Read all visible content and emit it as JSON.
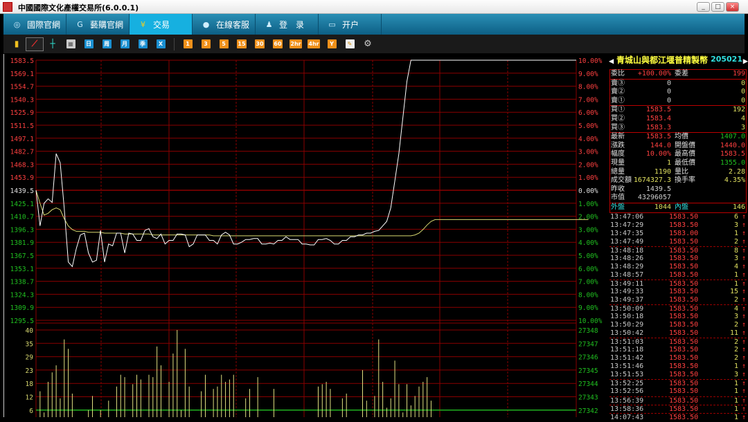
{
  "window": {
    "title": "中國國際文化產權交易所(6.0.0.1)",
    "min": "_",
    "max": "□",
    "close": "×"
  },
  "nav": [
    {
      "label": "國際官網",
      "icon": "globe-icon"
    },
    {
      "label": "藝購官網",
      "icon": "go-icon"
    },
    {
      "label": "交易",
      "icon": "yen-icon"
    },
    {
      "label": "在線客服",
      "icon": "chat-icon"
    },
    {
      "label": "登　录",
      "icon": "user-icon"
    },
    {
      "label": "开户",
      "icon": "monitor-icon"
    }
  ],
  "nav_active": 2,
  "toolbar": {
    "period_blue": [
      "日",
      "周",
      "月",
      "季",
      "X"
    ],
    "period_orange": [
      "1",
      "3",
      "5",
      "15",
      "30",
      "60",
      "2hr",
      "4hr",
      "Y"
    ]
  },
  "colors": {
    "grid": "#8a0000",
    "up": "#ff4040",
    "down": "#20c020",
    "price_line": "#ffffff",
    "avg_line": "#d8d870",
    "volume": "#e0e080",
    "accent": "#16b0e0"
  },
  "chart_data": {
    "type": "line",
    "prev_close": 1439.5,
    "ylim": [
      1295.5,
      1583.5
    ],
    "y_ticks": [
      "1583.5",
      "1569.1",
      "1554.7",
      "1540.3",
      "1525.9",
      "1511.5",
      "1497.1",
      "1482.7",
      "1468.3",
      "1453.9",
      "1439.5",
      "1425.1",
      "1410.7",
      "1396.3",
      "1381.9",
      "1367.5",
      "1353.1",
      "1338.7",
      "1324.3",
      "1309.9",
      "1295.5"
    ],
    "pct_ticks": [
      "10.00%",
      "9.00%",
      "8.00%",
      "7.00%",
      "6.00%",
      "5.00%",
      "4.00%",
      "3.00%",
      "2.00%",
      "1.00%",
      "0.00%",
      "1.00%",
      "2.00%",
      "3.00%",
      "4.00%",
      "5.00%",
      "6.00%",
      "7.00%",
      "8.00%",
      "9.00%",
      "10.00%"
    ],
    "price": [
      1439.5,
      1400,
      1425,
      1430,
      1426,
      1480,
      1470,
      1420,
      1360,
      1355,
      1375,
      1390,
      1392,
      1370,
      1360,
      1362,
      1395,
      1360,
      1380,
      1378,
      1392,
      1392,
      1370,
      1392,
      1391,
      1384,
      1384,
      1395,
      1397,
      1388,
      1386,
      1391,
      1380,
      1384,
      1384,
      1391,
      1391,
      1390,
      1377,
      1380,
      1390,
      1390,
      1390,
      1384,
      1384,
      1380,
      1390,
      1393,
      1390,
      1380,
      1380,
      1382,
      1385,
      1385,
      1386,
      1386,
      1380,
      1380,
      1381,
      1380,
      1384,
      1384,
      1388,
      1385,
      1385,
      1385,
      1380,
      1380,
      1379,
      1379,
      1385,
      1385,
      1386,
      1384,
      1380,
      1380,
      1384,
      1384,
      1388,
      1388,
      1390,
      1390,
      1392,
      1392,
      1394,
      1395,
      1400,
      1405,
      1420,
      1450,
      1480,
      1520,
      1560,
      1583.5,
      1583.5,
      1583.5,
      1583.5,
      1583.5,
      1583.5,
      1583.5,
      1583.5,
      1583.5,
      1583.5,
      1583.5,
      1583.5,
      1583.5,
      1583.5,
      1583.5,
      1583.5,
      1583.5,
      1583.5,
      1583.5,
      1583.5,
      1583.5,
      1583.5,
      1583.5,
      1583.5,
      1583.5,
      1583.5,
      1583.5,
      1583.5,
      1583.5,
      1583.5,
      1583.5,
      1583.5,
      1583.5,
      1583.5,
      1583.5,
      1583.5,
      1583.5,
      1583.5,
      1583.5,
      1583.5,
      1583.5,
      1583.5
    ],
    "avg": [
      1439.5,
      1425,
      1412,
      1414,
      1418,
      1420,
      1418,
      1408,
      1400,
      1396,
      1394,
      1394,
      1394,
      1393,
      1393,
      1393,
      1393,
      1392,
      1392,
      1392,
      1392,
      1392,
      1391,
      1391,
      1391,
      1391,
      1391,
      1391,
      1391,
      1390,
      1390,
      1390,
      1390,
      1390,
      1390,
      1390,
      1390,
      1390,
      1390,
      1390,
      1390,
      1390,
      1390,
      1390,
      1389,
      1389,
      1389,
      1389,
      1389,
      1389,
      1389,
      1389,
      1389,
      1389,
      1389,
      1389,
      1389,
      1389,
      1389,
      1389,
      1389,
      1389,
      1389,
      1389,
      1389,
      1389,
      1389,
      1389,
      1389,
      1389,
      1389,
      1389,
      1389,
      1389,
      1389,
      1389,
      1389,
      1389,
      1389,
      1389,
      1389,
      1389,
      1389,
      1389,
      1389,
      1389,
      1389,
      1389,
      1389,
      1389,
      1389,
      1389,
      1389,
      1389,
      1390,
      1392,
      1396,
      1401,
      1405,
      1407,
      1407,
      1407,
      1407,
      1407,
      1407,
      1407,
      1407,
      1407,
      1407,
      1407,
      1407,
      1407,
      1407,
      1407,
      1407,
      1407,
      1407,
      1407,
      1407,
      1407,
      1407,
      1407,
      1407,
      1407,
      1407,
      1407,
      1407,
      1407,
      1407,
      1407,
      1407,
      1407,
      1407,
      1407,
      1407,
      1407,
      1407,
      1407
    ],
    "vol_ylim": [
      0,
      40
    ],
    "vol_ticks": [
      "40",
      "35",
      "29",
      "23",
      "18",
      "12",
      "6"
    ],
    "vol_right_ticks": [
      "27348",
      "27347",
      "27346",
      "27345",
      "27344",
      "27343",
      "27342"
    ],
    "volume": [
      2,
      14,
      5,
      18,
      22,
      25,
      11,
      36,
      32,
      13,
      3,
      2,
      1,
      6,
      12,
      3,
      6,
      2,
      10,
      0,
      16,
      21,
      20,
      2,
      17,
      21,
      19,
      3,
      21,
      20,
      33,
      25,
      0,
      18,
      30,
      40,
      6,
      32,
      16,
      1,
      0,
      14,
      21,
      0,
      15,
      16,
      21,
      18,
      19,
      21,
      0,
      0,
      11,
      15,
      0,
      20,
      0,
      0,
      0,
      15,
      0,
      0,
      0,
      0,
      0,
      0,
      0,
      0,
      0,
      0,
      16,
      17,
      18,
      15,
      2,
      3,
      11,
      13,
      2,
      0,
      0,
      23,
      10,
      0,
      12,
      36,
      18,
      7,
      11,
      27,
      17,
      5,
      17,
      8,
      12,
      16,
      18,
      20,
      10,
      0,
      0,
      0,
      0,
      0,
      0,
      0,
      0,
      0,
      0,
      0,
      0,
      0,
      0,
      0,
      0,
      0,
      0,
      0,
      0,
      0,
      0,
      0,
      0,
      0,
      0,
      0,
      0,
      0,
      0,
      0,
      0,
      0,
      0,
      0,
      0,
      0,
      0,
      0,
      0
    ]
  },
  "quote": {
    "name": "青城山與都江堰普精製幣",
    "code": "205021",
    "wb_label": "委比",
    "wb": "+100.00%",
    "wc_label": "委差",
    "wc": "199",
    "asks": [
      {
        "label": "賣③",
        "price": "0",
        "vol": "0"
      },
      {
        "label": "賣②",
        "price": "0",
        "vol": "0"
      },
      {
        "label": "賣①",
        "price": "0",
        "vol": "0"
      }
    ],
    "bids": [
      {
        "label": "買①",
        "price": "1583.5",
        "vol": "192"
      },
      {
        "label": "買②",
        "price": "1583.4",
        "vol": "4"
      },
      {
        "label": "買③",
        "price": "1583.3",
        "vol": "3"
      }
    ],
    "stats": [
      {
        "l1": "最新",
        "v1": "1583.5",
        "c1": "red",
        "l2": "均價",
        "v2": "1407.0",
        "c2": "grn"
      },
      {
        "l1": "漲跌",
        "v1": "144.0",
        "c1": "red",
        "l2": "開盤價",
        "v2": "1440.0",
        "c2": "red"
      },
      {
        "l1": "幅度",
        "v1": "10.00%",
        "c1": "red",
        "l2": "最高價",
        "v2": "1583.5",
        "c2": "red"
      },
      {
        "l1": "現量",
        "v1": "1",
        "c1": "yel",
        "l2": "最低價",
        "v2": "1355.0",
        "c2": "grn"
      },
      {
        "l1": "總量",
        "v1": "1190",
        "c1": "yel",
        "l2": "量比",
        "v2": "2.28",
        "c2": "yel"
      },
      {
        "l1": "成交額",
        "v1": "1674327.3",
        "c1": "yel",
        "l2": "換手率",
        "v2": "4.35%",
        "c2": "yel"
      },
      {
        "l1": "昨收",
        "v1": "1439.5",
        "c1": "wht",
        "l2": "",
        "v2": "",
        "c2": "wht"
      },
      {
        "l1": "市值",
        "v1": "43296057",
        "c1": "wht",
        "l2": "",
        "v2": "",
        "c2": "wht"
      }
    ],
    "outer_label": "外盤",
    "outer": "1044",
    "inner_label": "內盤",
    "inner": "146"
  },
  "trades": [
    [
      "13:47:06",
      "1583.50",
      "6"
    ],
    [
      "13:47:29",
      "1583.50",
      "3"
    ],
    [
      "13:47:35",
      "1583.00",
      "1"
    ],
    [
      "13:47:49",
      "1583.50",
      "2"
    ],
    [
      "13:48:18",
      "1583.50",
      "8"
    ],
    [
      "13:48:26",
      "1583.50",
      "3"
    ],
    [
      "13:48:29",
      "1583.50",
      "4"
    ],
    [
      "13:48:57",
      "1583.50",
      "1"
    ],
    [
      "13:49:11",
      "1583.50",
      "1"
    ],
    [
      "13:49:33",
      "1583.50",
      "15"
    ],
    [
      "13:49:37",
      "1583.50",
      "2"
    ],
    [
      "13:50:09",
      "1583.50",
      "4"
    ],
    [
      "13:50:18",
      "1583.50",
      "3"
    ],
    [
      "13:50:29",
      "1583.50",
      "2"
    ],
    [
      "13:50:42",
      "1583.50",
      "11"
    ],
    [
      "13:51:03",
      "1583.50",
      "2"
    ],
    [
      "13:51:18",
      "1583.50",
      "2"
    ],
    [
      "13:51:42",
      "1583.50",
      "2"
    ],
    [
      "13:51:46",
      "1583.50",
      "1"
    ],
    [
      "13:51:53",
      "1583.50",
      "3"
    ],
    [
      "13:52:25",
      "1583.50",
      "1"
    ],
    [
      "13:52:56",
      "1583.50",
      "1"
    ],
    [
      "13:56:39",
      "1583.50",
      "1"
    ],
    [
      "13:58:36",
      "1583.50",
      "1"
    ],
    [
      "14:07:43",
      "1583.50",
      "1"
    ]
  ],
  "trade_arrow": "↑"
}
